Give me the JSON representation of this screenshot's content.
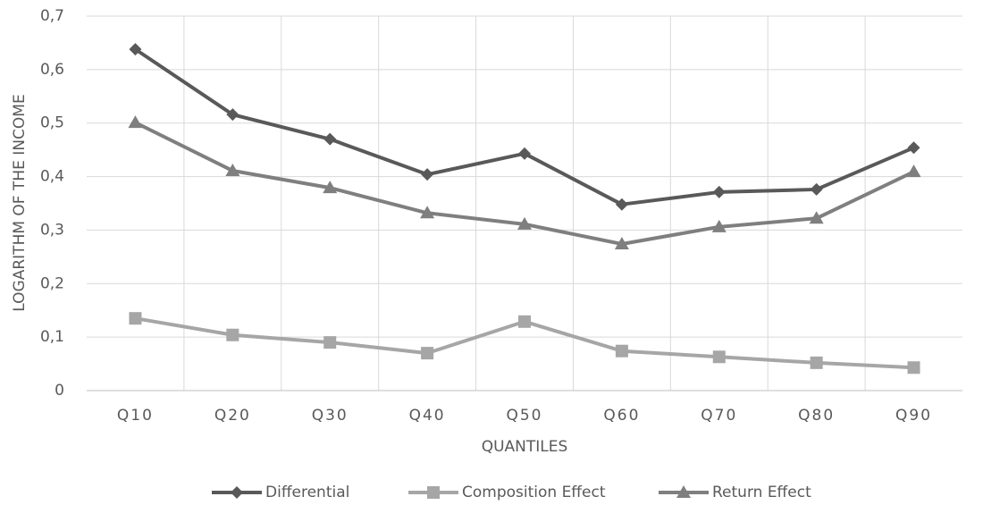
{
  "chart_data": {
    "type": "line",
    "x_label": "QUANTILES",
    "y_label": "LOGARITHM OF THE INCOME",
    "categories": [
      "Q10",
      "Q20",
      "Q30",
      "Q40",
      "Q50",
      "Q60",
      "Q70",
      "Q80",
      "Q90"
    ],
    "series": [
      {
        "name": "Differential",
        "color": "#595959",
        "marker": "diamond",
        "values": [
          0.638,
          0.516,
          0.47,
          0.404,
          0.443,
          0.348,
          0.371,
          0.376,
          0.454
        ]
      },
      {
        "name": "Composition Effect",
        "color": "#a6a6a6",
        "marker": "square",
        "values": [
          0.135,
          0.104,
          0.09,
          0.07,
          0.129,
          0.074,
          0.063,
          0.052,
          0.043
        ]
      },
      {
        "name": "Return Effect",
        "color": "#7f7f7f",
        "marker": "triangle",
        "values": [
          0.501,
          0.411,
          0.379,
          0.332,
          0.311,
          0.274,
          0.306,
          0.322,
          0.409
        ]
      }
    ],
    "ylim": [
      0,
      0.7
    ],
    "yticks": [
      0,
      {
        "value": 0.1,
        "label": "0,1"
      },
      {
        "value": 0.2,
        "label": "0,2"
      },
      {
        "value": 0.3,
        "label": "0,3"
      },
      {
        "value": 0.4,
        "label": "0,4"
      },
      {
        "value": 0.5,
        "label": "0,5"
      },
      {
        "value": 0.6,
        "label": "0,6"
      },
      {
        "value": 0.7,
        "label": "0,7"
      }
    ],
    "grid": true,
    "legend": "bottom"
  }
}
